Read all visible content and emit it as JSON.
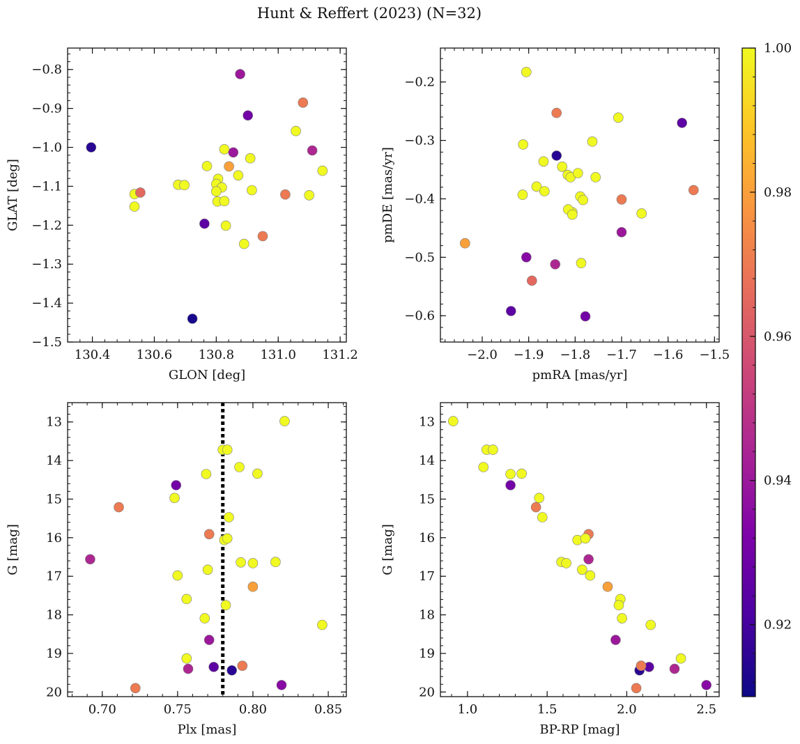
{
  "chart_data": {
    "type": "scatter",
    "title": "Hunt & Reffert (2023) (N=32)",
    "colormap": "plasma",
    "colorbar": {
      "range": [
        0.91,
        1.0
      ],
      "ticks": [
        0.92,
        0.94,
        0.96,
        0.98,
        1.0
      ],
      "tick_labels": [
        "0.92",
        "0.94",
        "0.96",
        "0.98",
        "1.00"
      ]
    },
    "panels": [
      {
        "id": "glon-glat",
        "xlabel": "GLON [deg]",
        "ylabel": "GLAT [deg]",
        "xlim": [
          130.32,
          131.22
        ],
        "ylim": [
          -1.5,
          -0.745
        ],
        "y_inverted": false,
        "xticks": [
          130.4,
          130.6,
          130.8,
          131.0,
          131.2
        ],
        "xtick_labels": [
          "130.4",
          "130.6",
          "130.8",
          "131.0",
          "131.2"
        ],
        "yticks": [
          -0.8,
          -0.9,
          -1.0,
          -1.1,
          -1.2,
          -1.3,
          -1.4,
          -1.5
        ],
        "ytick_labels": [
          "−0.8",
          "−0.9",
          "−1.0",
          "−1.1",
          "−1.2",
          "−1.3",
          "−1.4",
          "−1.5"
        ],
        "x": [
          130.877,
          130.902,
          131.08,
          131.057,
          130.396,
          130.826,
          130.855,
          130.91,
          131.11,
          131.143,
          130.77,
          130.806,
          130.871,
          130.536,
          130.555,
          130.536,
          130.677,
          130.697,
          130.8,
          130.818,
          130.8,
          130.915,
          131.023,
          131.1,
          130.804,
          130.826,
          130.831,
          130.89,
          130.95,
          130.762,
          130.723,
          130.841
        ],
        "y": [
          -0.812,
          -0.918,
          -0.885,
          -0.958,
          -1.0,
          -1.005,
          -1.013,
          -1.028,
          -1.008,
          -1.06,
          -1.048,
          -1.081,
          -1.072,
          -1.12,
          -1.116,
          -1.152,
          -1.096,
          -1.097,
          -1.094,
          -1.103,
          -1.113,
          -1.11,
          -1.121,
          -1.123,
          -1.139,
          -1.138,
          -1.201,
          -1.248,
          -1.228,
          -1.196,
          -1.44,
          -1.049
        ],
        "c": [
          0.94,
          0.93,
          0.97,
          1.0,
          0.915,
          1.0,
          0.94,
          1.0,
          0.945,
          1.0,
          1.0,
          1.0,
          1.0,
          1.0,
          0.965,
          1.0,
          1.0,
          1.0,
          1.0,
          1.0,
          1.0,
          1.0,
          0.97,
          1.0,
          1.0,
          1.0,
          1.0,
          1.0,
          0.97,
          0.925,
          0.912,
          0.98
        ]
      },
      {
        "id": "pmra-pmde",
        "xlabel": "pmRA [mas/yr]",
        "ylabel": "pmDE [mas/yr]",
        "xlim": [
          -2.09,
          -1.49
        ],
        "ylim": [
          -0.645,
          -0.142
        ],
        "y_inverted": false,
        "xticks": [
          -2.0,
          -1.9,
          -1.8,
          -1.7,
          -1.6,
          -1.5
        ],
        "xtick_labels": [
          "−2.0",
          "−1.9",
          "−1.8",
          "−1.7",
          "−1.6",
          "−1.5"
        ],
        "yticks": [
          -0.2,
          -0.3,
          -0.4,
          -0.5,
          -0.6
        ],
        "ytick_labels": [
          "−0.2",
          "−0.3",
          "−0.4",
          "−0.5",
          "−0.6"
        ],
        "x": [
          -1.905,
          -1.84,
          -1.707,
          -1.57,
          -1.912,
          -1.84,
          -1.763,
          -1.868,
          -1.828,
          -1.816,
          -1.81,
          -1.794,
          -1.756,
          -1.883,
          -1.866,
          -1.913,
          -1.789,
          -1.783,
          -1.806,
          -1.815,
          -1.806,
          -1.7,
          -1.657,
          -1.545,
          -2.037,
          -1.905,
          -1.843,
          -1.787,
          -1.893,
          -1.7,
          -1.938,
          -1.778
        ],
        "y": [
          -0.183,
          -0.253,
          -0.261,
          -0.27,
          -0.307,
          -0.326,
          -0.302,
          -0.336,
          -0.345,
          -0.359,
          -0.363,
          -0.356,
          -0.363,
          -0.379,
          -0.387,
          -0.393,
          -0.396,
          -0.402,
          -0.423,
          -0.418,
          -0.427,
          -0.401,
          -0.425,
          -0.385,
          -0.476,
          -0.5,
          -0.512,
          -0.51,
          -0.54,
          -0.457,
          -0.592,
          -0.601
        ],
        "c": [
          1.0,
          0.97,
          1.0,
          0.925,
          1.0,
          0.915,
          1.0,
          1.0,
          1.0,
          1.0,
          1.0,
          1.0,
          1.0,
          1.0,
          1.0,
          1.0,
          1.0,
          1.0,
          1.0,
          1.0,
          1.0,
          0.97,
          1.0,
          0.97,
          0.98,
          0.935,
          0.945,
          1.0,
          0.965,
          0.94,
          0.925,
          0.93
        ]
      },
      {
        "id": "plx-g",
        "xlabel": "Plx [mas]",
        "ylabel": "G [mag]",
        "xlim": [
          0.677,
          0.862
        ],
        "ylim": [
          12.5,
          20.12
        ],
        "y_inverted": true,
        "xticks": [
          0.7,
          0.75,
          0.8,
          0.85
        ],
        "xtick_labels": [
          "0.70",
          "0.75",
          "0.80",
          "0.85"
        ],
        "yticks": [
          13,
          14,
          15,
          16,
          17,
          18,
          19,
          20
        ],
        "ytick_labels": [
          "13",
          "14",
          "15",
          "16",
          "17",
          "18",
          "19",
          "20"
        ],
        "vline": {
          "x": 0.78,
          "style": "dotted",
          "color": "#000000"
        },
        "x": [
          0.821,
          0.78,
          0.783,
          0.769,
          0.791,
          0.803,
          0.749,
          0.748,
          0.711,
          0.784,
          0.771,
          0.781,
          0.783,
          0.692,
          0.815,
          0.792,
          0.8,
          0.75,
          0.77,
          0.8,
          0.756,
          0.782,
          0.768,
          0.846,
          0.771,
          0.756,
          0.757,
          0.774,
          0.793,
          0.786,
          0.819,
          0.722
        ],
        "y": [
          12.98,
          13.72,
          13.72,
          14.35,
          14.17,
          14.34,
          14.64,
          14.97,
          15.21,
          15.47,
          15.91,
          16.06,
          16.02,
          16.56,
          16.63,
          16.64,
          16.66,
          16.98,
          16.83,
          17.27,
          17.59,
          17.75,
          18.09,
          18.26,
          18.65,
          19.13,
          19.4,
          19.35,
          19.32,
          19.44,
          19.82,
          19.9
        ],
        "c": [
          1.0,
          1.0,
          1.0,
          1.0,
          1.0,
          1.0,
          0.93,
          1.0,
          0.97,
          1.0,
          0.97,
          1.0,
          1.0,
          0.945,
          1.0,
          1.0,
          1.0,
          1.0,
          1.0,
          0.98,
          1.0,
          1.0,
          1.0,
          1.0,
          0.94,
          1.0,
          0.945,
          0.925,
          0.97,
          0.915,
          0.935,
          0.97
        ]
      },
      {
        "id": "bprp-g",
        "xlabel": "BP-RP [mag]",
        "ylabel": "G [mag]",
        "xlim": [
          0.83,
          2.58
        ],
        "ylim": [
          12.5,
          20.12
        ],
        "y_inverted": true,
        "xticks": [
          1.0,
          1.5,
          2.0,
          2.5
        ],
        "xtick_labels": [
          "1.0",
          "1.5",
          "2.0",
          "2.5"
        ],
        "yticks": [
          13,
          14,
          15,
          16,
          17,
          18,
          19,
          20
        ],
        "ytick_labels": [
          "13",
          "14",
          "15",
          "16",
          "17",
          "18",
          "19",
          "20"
        ],
        "x": [
          0.91,
          1.12,
          1.16,
          1.1,
          1.27,
          1.34,
          1.27,
          1.45,
          1.43,
          1.47,
          1.76,
          1.69,
          1.74,
          1.76,
          1.59,
          1.62,
          1.72,
          1.77,
          1.88,
          1.96,
          1.95,
          1.97,
          2.15,
          1.93,
          2.34,
          2.09,
          2.3,
          2.14,
          2.06,
          2.08,
          2.5,
          2.09
        ],
        "y": [
          12.98,
          13.72,
          13.72,
          14.17,
          14.35,
          14.34,
          14.64,
          14.97,
          15.21,
          15.47,
          15.91,
          16.06,
          16.02,
          16.56,
          16.63,
          16.66,
          16.83,
          16.98,
          17.27,
          17.59,
          17.75,
          18.09,
          18.26,
          18.65,
          19.13,
          19.32,
          19.4,
          19.35,
          19.9,
          19.44,
          19.82,
          19.32
        ],
        "c": [
          1.0,
          1.0,
          1.0,
          1.0,
          1.0,
          1.0,
          0.93,
          1.0,
          0.97,
          1.0,
          0.97,
          1.0,
          1.0,
          0.945,
          1.0,
          1.0,
          1.0,
          1.0,
          0.98,
          1.0,
          1.0,
          1.0,
          1.0,
          0.94,
          1.0,
          0.97,
          0.945,
          0.925,
          0.97,
          0.915,
          0.935,
          0.97
        ]
      }
    ]
  }
}
